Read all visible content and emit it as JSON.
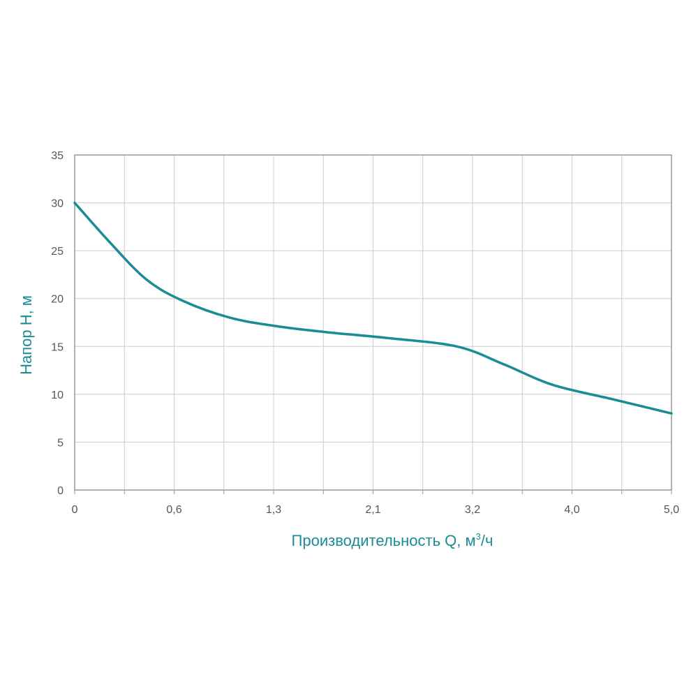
{
  "chart_data": {
    "type": "line",
    "xlabel": "Производительность Q, м",
    "xlabel_sup": "3",
    "xlabel_suffix": "/ч",
    "ylabel": "Напор H, м",
    "x_tick_labels": [
      "0",
      "0,6",
      "1,3",
      "2,1",
      "3,2",
      "4,0",
      "5,0"
    ],
    "x_tick_count": 12,
    "y_ticks": [
      0,
      5,
      10,
      15,
      20,
      25,
      30,
      35
    ],
    "ylim": [
      0,
      35
    ],
    "grid": true,
    "colors": {
      "line": "#1a8c96",
      "grid": "#cccccc",
      "frame": "#999999",
      "title": "#1a8c96"
    },
    "series": [
      {
        "x": [
          0,
          0.3,
          0.6,
          0.9,
          1.3,
          1.7,
          2.1,
          2.6,
          3.2,
          3.6,
          4.0,
          4.5,
          5.0
        ],
        "y": [
          30,
          25.8,
          22,
          19.8,
          18,
          17.1,
          16.5,
          15.9,
          15,
          13.1,
          11,
          9.5,
          8
        ]
      }
    ]
  }
}
